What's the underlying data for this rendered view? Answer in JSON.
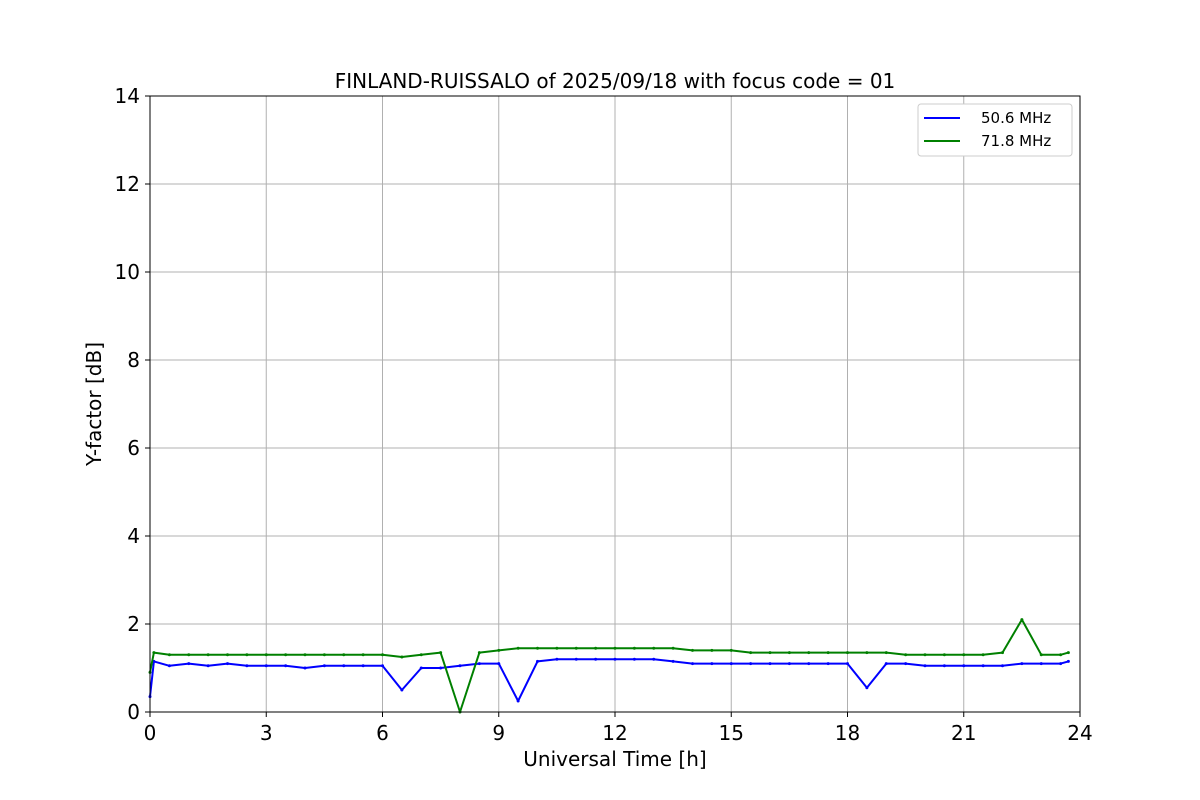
{
  "chart_data": {
    "type": "line",
    "title": "FINLAND-RUISSALO of 2025/09/18 with focus code = 01",
    "xlabel": "Universal Time [h]",
    "ylabel": "Y-factor [dB]",
    "xlim": [
      0,
      24
    ],
    "ylim": [
      0,
      14
    ],
    "x_ticks": [
      "0",
      "3",
      "6",
      "9",
      "12",
      "15",
      "18",
      "21",
      "24"
    ],
    "y_ticks": [
      "0",
      "2",
      "4",
      "6",
      "8",
      "10",
      "12",
      "14"
    ],
    "grid": true,
    "legend_position": "top-right",
    "series": [
      {
        "name": "50.6 MHz",
        "color": "#0000ff",
        "x": [
          0.0,
          0.1,
          0.5,
          1.0,
          1.5,
          2.0,
          2.5,
          3.0,
          3.5,
          4.0,
          4.5,
          5.0,
          5.5,
          6.0,
          6.5,
          7.0,
          7.5,
          8.0,
          8.5,
          9.0,
          9.5,
          10.0,
          10.5,
          11.0,
          11.5,
          12.0,
          12.5,
          13.0,
          13.5,
          14.0,
          14.5,
          15.0,
          15.5,
          16.0,
          16.5,
          17.0,
          17.5,
          18.0,
          18.5,
          19.0,
          19.5,
          20.0,
          20.5,
          21.0,
          21.5,
          22.0,
          22.5,
          23.0,
          23.5,
          23.7
        ],
        "values": [
          0.35,
          1.15,
          1.05,
          1.1,
          1.05,
          1.1,
          1.05,
          1.05,
          1.05,
          1.0,
          1.05,
          1.05,
          1.05,
          1.05,
          0.5,
          1.0,
          1.0,
          1.05,
          1.1,
          1.1,
          0.25,
          1.15,
          1.2,
          1.2,
          1.2,
          1.2,
          1.2,
          1.2,
          1.15,
          1.1,
          1.1,
          1.1,
          1.1,
          1.1,
          1.1,
          1.1,
          1.1,
          1.1,
          0.55,
          1.1,
          1.1,
          1.05,
          1.05,
          1.05,
          1.05,
          1.05,
          1.1,
          1.1,
          1.1,
          1.15
        ]
      },
      {
        "name": "71.8 MHz",
        "color": "#008000",
        "x": [
          0.0,
          0.1,
          0.5,
          1.0,
          1.5,
          2.0,
          2.5,
          3.0,
          3.5,
          4.0,
          4.5,
          5.0,
          5.5,
          6.0,
          6.5,
          7.0,
          7.5,
          8.0,
          8.5,
          9.0,
          9.5,
          10.0,
          10.5,
          11.0,
          11.5,
          12.0,
          12.5,
          13.0,
          13.5,
          14.0,
          14.5,
          15.0,
          15.5,
          16.0,
          16.5,
          17.0,
          17.5,
          18.0,
          18.5,
          19.0,
          19.5,
          20.0,
          20.5,
          21.0,
          21.5,
          22.0,
          22.5,
          23.0,
          23.5,
          23.7
        ],
        "values": [
          0.9,
          1.35,
          1.3,
          1.3,
          1.3,
          1.3,
          1.3,
          1.3,
          1.3,
          1.3,
          1.3,
          1.3,
          1.3,
          1.3,
          1.25,
          1.3,
          1.35,
          0.0,
          1.35,
          1.4,
          1.45,
          1.45,
          1.45,
          1.45,
          1.45,
          1.45,
          1.45,
          1.45,
          1.45,
          1.4,
          1.4,
          1.4,
          1.35,
          1.35,
          1.35,
          1.35,
          1.35,
          1.35,
          1.35,
          1.35,
          1.3,
          1.3,
          1.3,
          1.3,
          1.3,
          1.35,
          2.1,
          1.3,
          1.3,
          1.35
        ]
      }
    ]
  }
}
